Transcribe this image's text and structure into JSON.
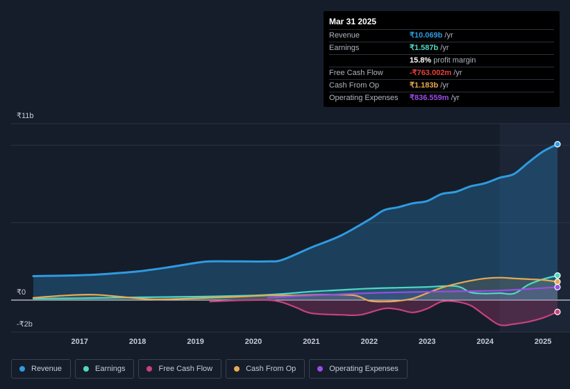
{
  "tooltip": {
    "date": "Mar 31 2025",
    "rows": [
      {
        "label": "Revenue",
        "value": "₹10.069b",
        "unit": " /yr",
        "color": "#2f9be0"
      },
      {
        "label": "Earnings",
        "value": "₹1.587b",
        "unit": " /yr",
        "color": "#4fd8c4"
      },
      {
        "label": "",
        "value": "15.8%",
        "unit": " profit margin",
        "color": "#ffffff"
      },
      {
        "label": "Free Cash Flow",
        "value": "-₹763.002m",
        "unit": " /yr",
        "color": "#e8413e"
      },
      {
        "label": "Cash From Op",
        "value": "₹1.183b",
        "unit": " /yr",
        "color": "#e8a955"
      },
      {
        "label": "Operating Expenses",
        "value": "₹836.559m",
        "unit": " /yr",
        "color": "#9a4de6"
      }
    ]
  },
  "legend": [
    {
      "label": "Revenue",
      "color": "#2f9be0"
    },
    {
      "label": "Earnings",
      "color": "#4fd8c4"
    },
    {
      "label": "Free Cash Flow",
      "color": "#c7427e"
    },
    {
      "label": "Cash From Op",
      "color": "#e8a955"
    },
    {
      "label": "Operating Expenses",
      "color": "#9a4de6"
    }
  ],
  "chart_data": {
    "type": "area",
    "y_unit_labels": {
      "top": "₹11b",
      "zero": "₹0",
      "bottom": "-₹2b"
    },
    "ylim": [
      -2,
      11
    ],
    "xlim": [
      2016.2,
      2025.25
    ],
    "x_ticks": [
      "2017",
      "2018",
      "2019",
      "2020",
      "2021",
      "2022",
      "2023",
      "2024",
      "2025"
    ],
    "forecast_shade_start": 2024.25,
    "grid": true,
    "series": [
      {
        "name": "Revenue",
        "color": "#2f9be0",
        "points": [
          [
            2016.2,
            1.55
          ],
          [
            2017.0,
            1.6
          ],
          [
            2017.5,
            1.7
          ],
          [
            2018.0,
            1.85
          ],
          [
            2018.5,
            2.1
          ],
          [
            2019.0,
            2.4
          ],
          [
            2019.25,
            2.5
          ],
          [
            2019.75,
            2.5
          ],
          [
            2020.25,
            2.5
          ],
          [
            2020.5,
            2.6
          ],
          [
            2021.0,
            3.4
          ],
          [
            2021.5,
            4.15
          ],
          [
            2022.0,
            5.2
          ],
          [
            2022.25,
            5.8
          ],
          [
            2022.5,
            6.0
          ],
          [
            2022.75,
            6.25
          ],
          [
            2023.0,
            6.4
          ],
          [
            2023.25,
            6.85
          ],
          [
            2023.5,
            7.0
          ],
          [
            2023.75,
            7.35
          ],
          [
            2024.0,
            7.55
          ],
          [
            2024.25,
            7.9
          ],
          [
            2024.5,
            8.15
          ],
          [
            2024.75,
            8.9
          ],
          [
            2025.0,
            9.6
          ],
          [
            2025.25,
            10.069
          ]
        ]
      },
      {
        "name": "Earnings",
        "color": "#4fd8c4",
        "points": [
          [
            2016.2,
            0.1
          ],
          [
            2017.0,
            0.12
          ],
          [
            2018.0,
            0.18
          ],
          [
            2019.0,
            0.22
          ],
          [
            2020.0,
            0.3
          ],
          [
            2020.5,
            0.4
          ],
          [
            2021.0,
            0.55
          ],
          [
            2021.5,
            0.65
          ],
          [
            2022.0,
            0.75
          ],
          [
            2022.5,
            0.8
          ],
          [
            2023.0,
            0.85
          ],
          [
            2023.5,
            0.9
          ],
          [
            2023.75,
            0.5
          ],
          [
            2024.0,
            0.42
          ],
          [
            2024.25,
            0.45
          ],
          [
            2024.5,
            0.42
          ],
          [
            2024.75,
            1.0
          ],
          [
            2025.0,
            1.35
          ],
          [
            2025.25,
            1.587
          ]
        ]
      },
      {
        "name": "Free Cash Flow",
        "color": "#c7427e",
        "points": [
          [
            2019.25,
            -0.1
          ],
          [
            2019.75,
            -0.02
          ],
          [
            2020.25,
            0.0
          ],
          [
            2020.5,
            -0.15
          ],
          [
            2020.75,
            -0.5
          ],
          [
            2021.0,
            -0.85
          ],
          [
            2021.5,
            -0.95
          ],
          [
            2021.85,
            -0.95
          ],
          [
            2022.25,
            -0.55
          ],
          [
            2022.5,
            -0.6
          ],
          [
            2022.75,
            -0.8
          ],
          [
            2023.0,
            -0.55
          ],
          [
            2023.25,
            -0.1
          ],
          [
            2023.5,
            -0.1
          ],
          [
            2023.75,
            -0.35
          ],
          [
            2024.0,
            -1.0
          ],
          [
            2024.25,
            -1.6
          ],
          [
            2024.5,
            -1.55
          ],
          [
            2024.75,
            -1.4
          ],
          [
            2025.0,
            -1.15
          ],
          [
            2025.25,
            -0.763
          ]
        ]
      },
      {
        "name": "Cash From Op",
        "color": "#e8a955",
        "points": [
          [
            2016.2,
            0.15
          ],
          [
            2016.75,
            0.3
          ],
          [
            2017.25,
            0.35
          ],
          [
            2017.75,
            0.2
          ],
          [
            2018.25,
            0.05
          ],
          [
            2018.75,
            0.08
          ],
          [
            2019.25,
            0.15
          ],
          [
            2019.75,
            0.22
          ],
          [
            2020.25,
            0.3
          ],
          [
            2020.75,
            0.3
          ],
          [
            2021.25,
            0.35
          ],
          [
            2021.75,
            0.3
          ],
          [
            2022.0,
            -0.05
          ],
          [
            2022.25,
            -0.1
          ],
          [
            2022.5,
            -0.05
          ],
          [
            2022.75,
            0.1
          ],
          [
            2023.0,
            0.45
          ],
          [
            2023.25,
            0.8
          ],
          [
            2023.5,
            1.05
          ],
          [
            2023.75,
            1.25
          ],
          [
            2024.0,
            1.4
          ],
          [
            2024.25,
            1.45
          ],
          [
            2024.5,
            1.4
          ],
          [
            2024.75,
            1.35
          ],
          [
            2025.0,
            1.3
          ],
          [
            2025.25,
            1.183
          ]
        ]
      },
      {
        "name": "Operating Expenses",
        "color": "#9a4de6",
        "points": [
          [
            2020.25,
            0.15
          ],
          [
            2020.75,
            0.25
          ],
          [
            2021.25,
            0.33
          ],
          [
            2021.75,
            0.42
          ],
          [
            2022.25,
            0.48
          ],
          [
            2022.75,
            0.52
          ],
          [
            2023.25,
            0.55
          ],
          [
            2023.75,
            0.58
          ],
          [
            2024.25,
            0.62
          ],
          [
            2024.75,
            0.72
          ],
          [
            2025.25,
            0.837
          ]
        ]
      }
    ]
  }
}
